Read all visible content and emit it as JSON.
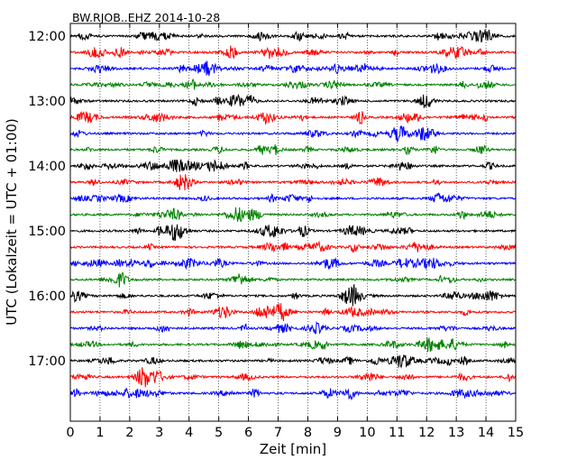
{
  "chart_data": {
    "type": "line",
    "title": "BW.RJOB..EHZ 2014-10-28",
    "xlabel": "Zeit  [min]",
    "ylabel": "UTC (Lokalzeit = UTC + 01:00)",
    "xlim": [
      0,
      15
    ],
    "x_ticks": [
      "0",
      "1",
      "2",
      "3",
      "4",
      "5",
      "6",
      "7",
      "8",
      "9",
      "10",
      "11",
      "12",
      "13",
      "14",
      "15"
    ],
    "y_ticks": [
      "12:00",
      "13:00",
      "14:00",
      "15:00",
      "16:00",
      "17:00"
    ],
    "trace_minutes": 15,
    "grid": "vertical dotted",
    "colors": [
      "#000000",
      "#ff0000",
      "#0000ff",
      "#008000"
    ],
    "traces": [
      {
        "start": "12:00",
        "color": "#000000"
      },
      {
        "start": "12:15",
        "color": "#ff0000"
      },
      {
        "start": "12:30",
        "color": "#0000ff"
      },
      {
        "start": "12:45",
        "color": "#008000"
      },
      {
        "start": "13:00",
        "color": "#000000"
      },
      {
        "start": "13:15",
        "color": "#ff0000"
      },
      {
        "start": "13:30",
        "color": "#0000ff"
      },
      {
        "start": "13:45",
        "color": "#008000"
      },
      {
        "start": "14:00",
        "color": "#000000"
      },
      {
        "start": "14:15",
        "color": "#ff0000"
      },
      {
        "start": "14:30",
        "color": "#0000ff"
      },
      {
        "start": "14:45",
        "color": "#008000"
      },
      {
        "start": "15:00",
        "color": "#000000"
      },
      {
        "start": "15:15",
        "color": "#ff0000"
      },
      {
        "start": "15:30",
        "color": "#0000ff"
      },
      {
        "start": "15:45",
        "color": "#008000"
      },
      {
        "start": "16:00",
        "color": "#000000"
      },
      {
        "start": "16:15",
        "color": "#ff0000"
      },
      {
        "start": "16:30",
        "color": "#0000ff"
      },
      {
        "start": "16:45",
        "color": "#008000"
      },
      {
        "start": "17:00",
        "color": "#000000"
      },
      {
        "start": "17:15",
        "color": "#ff0000"
      },
      {
        "start": "17:30",
        "color": "#0000ff"
      }
    ]
  }
}
